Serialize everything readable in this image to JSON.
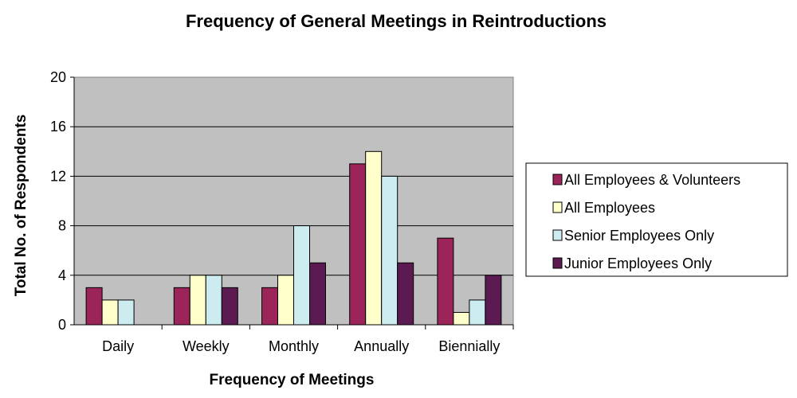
{
  "chart_data": {
    "type": "bar",
    "title": "Frequency of General Meetings in Reintroductions",
    "xlabel": "Frequency of Meetings",
    "ylabel": "Total No. of Respondents",
    "categories": [
      "Daily",
      "Weekly",
      "Monthly",
      "Annually",
      "Biennially"
    ],
    "ylim": [
      0,
      20
    ],
    "yticks": [
      "0",
      "4",
      "8",
      "12",
      "16",
      "20"
    ],
    "grid": true,
    "legend_position": "right",
    "series": [
      {
        "name": "All Employees & Volunteers",
        "color": "#9B2459",
        "values": [
          3,
          3,
          3,
          13,
          7
        ]
      },
      {
        "name": "All Employees",
        "color": "#FFFFCC",
        "values": [
          2,
          4,
          4,
          14,
          1
        ]
      },
      {
        "name": "Senior Employees Only",
        "color": "#CCECF0",
        "values": [
          2,
          4,
          8,
          12,
          2
        ]
      },
      {
        "name": "Junior Employees Only",
        "color": "#5C1A52",
        "values": [
          0,
          3,
          5,
          5,
          4
        ]
      }
    ],
    "plot_background": "#C0C0C0"
  }
}
